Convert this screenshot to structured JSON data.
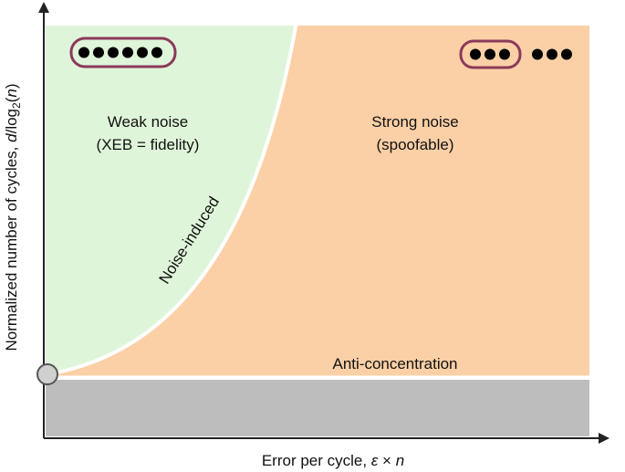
{
  "regions": {
    "weak": {
      "title": "Weak noise",
      "subtitle": "(XEB = fidelity)"
    },
    "strong": {
      "title": "Strong noise",
      "subtitle": "(spoofable)"
    }
  },
  "boundaries": {
    "curve": "Noise-induced",
    "floor": "Anti-concentration"
  },
  "axes": {
    "x_label": {
      "text": "Error per cycle, ",
      "epsilon": "ε",
      "times": " × ",
      "n": "n"
    },
    "y_label": {
      "text": "Normalized number of cycles, ",
      "d": "d",
      "log": "/log",
      "base": "2",
      "open": "(",
      "n": "n",
      "close": ")"
    }
  }
}
